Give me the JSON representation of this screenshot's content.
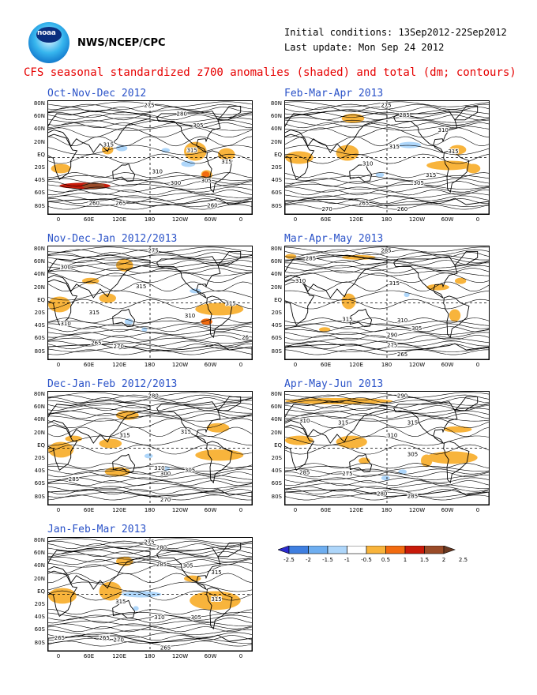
{
  "header": {
    "agency": "NWS/NCEP/CPC",
    "initial_conditions": "Initial conditions: 13Sep2012-22Sep2012",
    "last_update": "Last update: Mon Sep 24 2012",
    "headline": "CFS seasonal standardized z700 anomalies (shaded) and total (dm; contours)"
  },
  "axes": {
    "lat_labels": [
      "80N",
      "60N",
      "40N",
      "20N",
      "EQ",
      "20S",
      "40S",
      "60S",
      "80S"
    ],
    "lon_labels": [
      "0",
      "60E",
      "120E",
      "180",
      "120W",
      "60W",
      "0"
    ]
  },
  "panels": [
    {
      "title": "Oct-Nov-Dec 2012",
      "contour_labels": [
        "275",
        "280",
        "305",
        "315",
        "315",
        "315",
        "310",
        "300",
        "305",
        "260",
        "265",
        "260"
      ]
    },
    {
      "title": "Nov-Dec-Jan 2012/2013",
      "contour_labels": [
        "275",
        "300",
        "315",
        "310",
        "315",
        "310",
        "315",
        "265",
        "270",
        "26"
      ]
    },
    {
      "title": "Dec-Jan-Feb 2012/2013",
      "contour_labels": [
        "280",
        "315",
        "315",
        "310",
        "305",
        "300",
        "285",
        "270"
      ]
    },
    {
      "title": "Jan-Feb-Mar 2013",
      "contour_labels": [
        "275",
        "280",
        "285",
        "305",
        "315",
        "315",
        "310",
        "315",
        "305",
        "265",
        "265",
        "270",
        "265"
      ]
    },
    {
      "title": "Feb-Mar-Apr 2013",
      "contour_labels": [
        "275",
        "285",
        "310",
        "315",
        "315",
        "310",
        "315",
        "305",
        "265",
        "270",
        "260"
      ]
    },
    {
      "title": "Mar-Apr-May 2013",
      "contour_labels": [
        "285",
        "285",
        "310",
        "315",
        "315",
        "310",
        "305",
        "290",
        "275",
        "265"
      ]
    },
    {
      "title": "Apr-May-Jun 2013",
      "contour_labels": [
        "290",
        "310",
        "315",
        "315",
        "310",
        "305",
        "285",
        "275",
        "280",
        "285"
      ]
    }
  ],
  "colorbar": {
    "labels": [
      "-2.5",
      "-2",
      "-1.5",
      "-1",
      "-0.5",
      "0.5",
      "1",
      "1.5",
      "2",
      "2.5"
    ],
    "colors": [
      "#2b2bd0",
      "#3f7fe0",
      "#6eaef0",
      "#aed6fa",
      "#ffffff",
      "#f8b43c",
      "#f26b10",
      "#c81a0a",
      "#9a4b28",
      "#6b3a23"
    ]
  }
}
